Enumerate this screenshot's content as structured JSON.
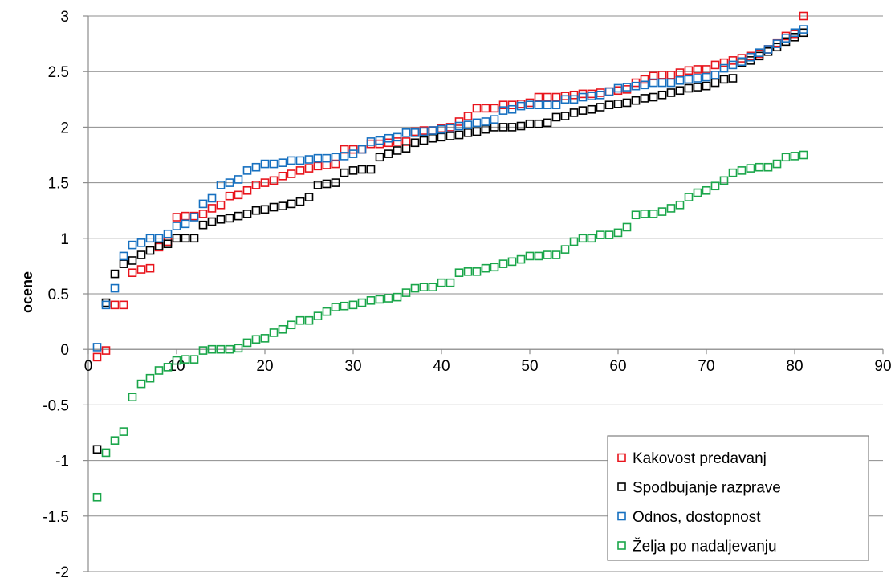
{
  "chart_data": {
    "type": "scatter",
    "title": "",
    "xlabel": "",
    "ylabel": "ocene",
    "xlim": [
      0,
      90
    ],
    "ylim": [
      -2,
      3
    ],
    "x_ticks": [
      0,
      10,
      20,
      30,
      40,
      50,
      60,
      70,
      80,
      90
    ],
    "y_ticks": [
      -2,
      -1.5,
      -1,
      -0.5,
      0,
      0.5,
      1,
      1.5,
      2,
      2.5,
      3
    ],
    "x_tick_labels": [
      "0",
      "10",
      "20",
      "30",
      "40",
      "50",
      "60",
      "70",
      "80",
      "90"
    ],
    "y_tick_labels": [
      "-2",
      "-1.5",
      "-1",
      "-0.5",
      "0",
      "0.5",
      "1",
      "1.5",
      "2",
      "2.5",
      "3"
    ],
    "grid": "horizontal",
    "legend_position": "bottom-right",
    "series": [
      {
        "name": "Kakovost predavanj",
        "color": "#e8141c",
        "x": [
          1,
          2,
          3,
          4,
          5,
          6,
          7,
          8,
          9,
          10,
          11,
          12,
          13,
          14,
          15,
          16,
          17,
          18,
          19,
          20,
          21,
          22,
          23,
          24,
          25,
          26,
          27,
          28,
          29,
          30,
          31,
          32,
          33,
          34,
          35,
          36,
          37,
          38,
          39,
          40,
          41,
          42,
          43,
          44,
          45,
          46,
          47,
          48,
          49,
          50,
          51,
          52,
          53,
          54,
          55,
          56,
          57,
          58,
          59,
          60,
          61,
          62,
          63,
          64,
          65,
          66,
          67,
          68,
          69,
          70,
          71,
          72,
          73,
          74,
          75,
          76,
          77,
          78,
          79,
          80,
          81
        ],
        "y": [
          -0.07,
          -0.01,
          0.4,
          0.4,
          0.69,
          0.72,
          0.73,
          0.92,
          0.97,
          1.19,
          1.2,
          1.2,
          1.22,
          1.27,
          1.3,
          1.38,
          1.39,
          1.43,
          1.48,
          1.5,
          1.52,
          1.56,
          1.58,
          1.61,
          1.63,
          1.65,
          1.66,
          1.67,
          1.8,
          1.8,
          1.8,
          1.85,
          1.85,
          1.86,
          1.87,
          1.87,
          1.96,
          1.97,
          1.97,
          1.99,
          2.0,
          2.05,
          2.1,
          2.17,
          2.17,
          2.17,
          2.2,
          2.2,
          2.21,
          2.22,
          2.27,
          2.27,
          2.27,
          2.28,
          2.29,
          2.3,
          2.3,
          2.31,
          2.32,
          2.33,
          2.34,
          2.4,
          2.43,
          2.46,
          2.47,
          2.47,
          2.49,
          2.51,
          2.52,
          2.52,
          2.56,
          2.58,
          2.6,
          2.62,
          2.64,
          2.66,
          2.7,
          2.76,
          2.82,
          2.84,
          3.0
        ]
      },
      {
        "name": "Spodbujanje razprave",
        "color": "#000000",
        "x": [
          1,
          2,
          3,
          4,
          5,
          6,
          7,
          8,
          9,
          10,
          11,
          12,
          13,
          14,
          15,
          16,
          17,
          18,
          19,
          20,
          21,
          22,
          23,
          24,
          25,
          26,
          27,
          28,
          29,
          30,
          31,
          32,
          33,
          34,
          35,
          36,
          37,
          38,
          39,
          40,
          41,
          42,
          43,
          44,
          45,
          46,
          47,
          48,
          49,
          50,
          51,
          52,
          53,
          54,
          55,
          56,
          57,
          58,
          59,
          60,
          61,
          62,
          63,
          64,
          65,
          66,
          67,
          68,
          69,
          70,
          71,
          72,
          73,
          74,
          75,
          76,
          77,
          78,
          79,
          80,
          81
        ],
        "y": [
          -0.9,
          0.42,
          0.68,
          0.77,
          0.8,
          0.85,
          0.89,
          0.93,
          0.95,
          1.0,
          1.0,
          1.0,
          1.12,
          1.15,
          1.17,
          1.18,
          1.2,
          1.22,
          1.25,
          1.26,
          1.28,
          1.29,
          1.31,
          1.33,
          1.37,
          1.48,
          1.49,
          1.5,
          1.59,
          1.61,
          1.62,
          1.62,
          1.73,
          1.76,
          1.79,
          1.81,
          1.86,
          1.88,
          1.9,
          1.91,
          1.92,
          1.93,
          1.95,
          1.96,
          1.98,
          2.0,
          2.0,
          2.0,
          2.01,
          2.03,
          2.03,
          2.04,
          2.09,
          2.1,
          2.13,
          2.15,
          2.16,
          2.18,
          2.2,
          2.21,
          2.22,
          2.24,
          2.26,
          2.27,
          2.29,
          2.31,
          2.33,
          2.35,
          2.36,
          2.37,
          2.4,
          2.43,
          2.44,
          2.58,
          2.6,
          2.64,
          2.68,
          2.72,
          2.77,
          2.81,
          2.85
        ]
      },
      {
        "name": "Odnos, dostopnost",
        "color": "#1670c0",
        "x": [
          1,
          2,
          3,
          4,
          5,
          6,
          7,
          8,
          9,
          10,
          11,
          12,
          13,
          14,
          15,
          16,
          17,
          18,
          19,
          20,
          21,
          22,
          23,
          24,
          25,
          26,
          27,
          28,
          29,
          30,
          31,
          32,
          33,
          34,
          35,
          36,
          37,
          38,
          39,
          40,
          41,
          42,
          43,
          44,
          45,
          46,
          47,
          48,
          49,
          50,
          51,
          52,
          53,
          54,
          55,
          56,
          57,
          58,
          59,
          60,
          61,
          62,
          63,
          64,
          65,
          66,
          67,
          68,
          69,
          70,
          71,
          72,
          73,
          74,
          75,
          76,
          77,
          78,
          79,
          80,
          81
        ],
        "y": [
          0.02,
          0.4,
          0.55,
          0.84,
          0.94,
          0.96,
          1.0,
          1.0,
          1.04,
          1.11,
          1.13,
          1.19,
          1.31,
          1.36,
          1.48,
          1.5,
          1.53,
          1.61,
          1.64,
          1.67,
          1.67,
          1.68,
          1.7,
          1.7,
          1.71,
          1.72,
          1.72,
          1.73,
          1.74,
          1.76,
          1.8,
          1.87,
          1.88,
          1.9,
          1.91,
          1.95,
          1.95,
          1.96,
          1.97,
          1.98,
          1.99,
          2.01,
          2.02,
          2.04,
          2.05,
          2.07,
          2.15,
          2.16,
          2.19,
          2.2,
          2.2,
          2.2,
          2.2,
          2.25,
          2.25,
          2.27,
          2.28,
          2.29,
          2.32,
          2.35,
          2.36,
          2.37,
          2.38,
          2.4,
          2.4,
          2.4,
          2.42,
          2.43,
          2.44,
          2.45,
          2.47,
          2.53,
          2.56,
          2.59,
          2.63,
          2.67,
          2.7,
          2.75,
          2.8,
          2.85,
          2.88
        ]
      },
      {
        "name": "Želja po nadaljevanju",
        "color": "#1aa64a",
        "x": [
          1,
          2,
          3,
          4,
          5,
          6,
          7,
          8,
          9,
          10,
          11,
          12,
          13,
          14,
          15,
          16,
          17,
          18,
          19,
          20,
          21,
          22,
          23,
          24,
          25,
          26,
          27,
          28,
          29,
          30,
          31,
          32,
          33,
          34,
          35,
          36,
          37,
          38,
          39,
          40,
          41,
          42,
          43,
          44,
          45,
          46,
          47,
          48,
          49,
          50,
          51,
          52,
          53,
          54,
          55,
          56,
          57,
          58,
          59,
          60,
          61,
          62,
          63,
          64,
          65,
          66,
          67,
          68,
          69,
          70,
          71,
          72,
          73,
          74,
          75,
          76,
          77,
          78,
          79,
          80,
          81
        ],
        "y": [
          -1.33,
          -0.93,
          -0.82,
          -0.74,
          -0.43,
          -0.31,
          -0.26,
          -0.19,
          -0.16,
          -0.1,
          -0.09,
          -0.09,
          -0.01,
          0.0,
          0.0,
          0.0,
          0.01,
          0.06,
          0.09,
          0.1,
          0.15,
          0.18,
          0.22,
          0.26,
          0.26,
          0.3,
          0.34,
          0.38,
          0.39,
          0.4,
          0.42,
          0.44,
          0.45,
          0.46,
          0.47,
          0.51,
          0.55,
          0.56,
          0.56,
          0.6,
          0.6,
          0.69,
          0.7,
          0.7,
          0.73,
          0.74,
          0.77,
          0.79,
          0.81,
          0.84,
          0.84,
          0.85,
          0.85,
          0.9,
          0.97,
          1.0,
          1.0,
          1.03,
          1.03,
          1.05,
          1.1,
          1.21,
          1.22,
          1.22,
          1.24,
          1.27,
          1.3,
          1.37,
          1.41,
          1.43,
          1.47,
          1.52,
          1.59,
          1.61,
          1.63,
          1.64,
          1.64,
          1.67,
          1.73,
          1.74,
          1.75
        ]
      }
    ]
  }
}
